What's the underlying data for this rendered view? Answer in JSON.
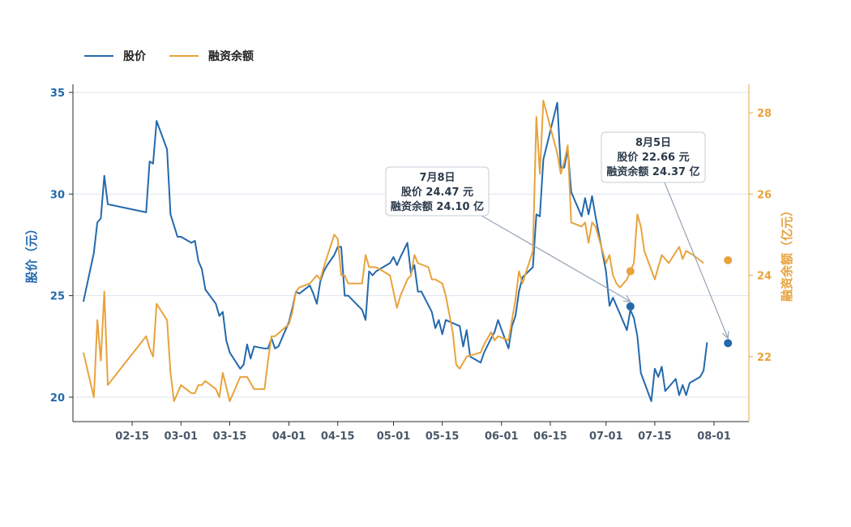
{
  "chart_data": {
    "type": "line",
    "x_ticks": [
      "02-15",
      "03-01",
      "03-15",
      "04-01",
      "04-15",
      "05-01",
      "05-15",
      "06-01",
      "06-15",
      "07-01",
      "07-15",
      "08-01"
    ],
    "x_tick_days": [
      14,
      28,
      42,
      59,
      73,
      89,
      103,
      120,
      134,
      150,
      164,
      181
    ],
    "y_left": {
      "label": "股价（元）",
      "lim": [
        18.8,
        35.4
      ],
      "ticks": [
        20,
        25,
        30,
        35
      ],
      "color": "#2369ad"
    },
    "y_right": {
      "label": "融资余额（亿元）",
      "lim": [
        20.4,
        28.7
      ],
      "ticks": [
        22,
        24,
        26,
        28
      ],
      "color": "#e8a33c"
    },
    "legend": [
      "股价",
      "融资余额"
    ],
    "legend_placement": "top-left",
    "grid": "horizontal",
    "series": [
      {
        "name": "股价",
        "axis": "left",
        "color": "#2369ad",
        "points": [
          [
            0,
            24.7
          ],
          [
            3,
            27.1
          ],
          [
            4,
            28.6
          ],
          [
            5,
            28.8
          ],
          [
            6,
            30.9
          ],
          [
            7,
            29.5
          ],
          [
            18,
            29.1
          ],
          [
            19,
            31.6
          ],
          [
            20,
            31.5
          ],
          [
            21,
            33.6
          ],
          [
            24,
            32.2
          ],
          [
            25,
            29.0
          ],
          [
            27,
            27.9
          ],
          [
            28,
            27.9
          ],
          [
            31,
            27.6
          ],
          [
            32,
            27.7
          ],
          [
            33,
            26.7
          ],
          [
            34,
            26.3
          ],
          [
            35,
            25.3
          ],
          [
            38,
            24.6
          ],
          [
            39,
            24.0
          ],
          [
            40,
            24.2
          ],
          [
            41,
            22.8
          ],
          [
            42,
            22.2
          ],
          [
            45,
            21.4
          ],
          [
            46,
            21.6
          ],
          [
            47,
            22.6
          ],
          [
            48,
            21.9
          ],
          [
            49,
            22.5
          ],
          [
            52,
            22.4
          ],
          [
            53,
            22.4
          ],
          [
            54,
            22.9
          ],
          [
            55,
            22.4
          ],
          [
            56,
            22.5
          ],
          [
            59,
            23.7
          ],
          [
            60,
            24.4
          ],
          [
            61,
            25.2
          ],
          [
            62,
            25.1
          ],
          [
            65,
            25.5
          ],
          [
            66,
            25.1
          ],
          [
            67,
            24.6
          ],
          [
            68,
            25.7
          ],
          [
            69,
            26.2
          ],
          [
            70,
            26.5
          ],
          [
            72,
            27.0
          ],
          [
            73,
            27.4
          ],
          [
            74,
            27.4
          ],
          [
            75,
            25.0
          ],
          [
            76,
            25.0
          ],
          [
            80,
            24.3
          ],
          [
            81,
            23.8
          ],
          [
            82,
            26.2
          ],
          [
            83,
            26.0
          ],
          [
            84,
            26.2
          ],
          [
            88,
            26.6
          ],
          [
            89,
            26.9
          ],
          [
            90,
            26.5
          ],
          [
            91,
            26.9
          ],
          [
            93,
            27.6
          ],
          [
            94,
            26.1
          ],
          [
            95,
            26.5
          ],
          [
            96,
            25.2
          ],
          [
            97,
            25.2
          ],
          [
            100,
            24.2
          ],
          [
            101,
            23.4
          ],
          [
            102,
            23.8
          ],
          [
            103,
            23.1
          ],
          [
            104,
            23.8
          ],
          [
            108,
            23.5
          ],
          [
            109,
            22.5
          ],
          [
            110,
            23.3
          ],
          [
            111,
            22.0
          ],
          [
            114,
            21.7
          ],
          [
            115,
            22.2
          ],
          [
            117,
            22.9
          ],
          [
            118,
            23.2
          ],
          [
            119,
            23.8
          ],
          [
            122,
            22.4
          ],
          [
            123,
            23.5
          ],
          [
            124,
            24.0
          ],
          [
            125,
            25.2
          ],
          [
            126,
            25.9
          ],
          [
            129,
            26.4
          ],
          [
            130,
            29.0
          ],
          [
            131,
            28.9
          ],
          [
            132,
            31.7
          ],
          [
            136,
            34.5
          ],
          [
            137,
            31.3
          ],
          [
            138,
            31.3
          ],
          [
            139,
            32.2
          ],
          [
            140,
            30.1
          ],
          [
            143,
            28.9
          ],
          [
            144,
            29.8
          ],
          [
            145,
            29.0
          ],
          [
            146,
            29.9
          ],
          [
            147,
            28.9
          ],
          [
            150,
            26.2
          ],
          [
            151,
            24.5
          ],
          [
            152,
            24.9
          ],
          [
            156,
            23.3
          ],
          [
            157,
            24.3
          ],
          [
            158,
            23.9
          ],
          [
            159,
            23.0
          ],
          [
            160,
            21.2
          ],
          [
            163,
            19.8
          ],
          [
            164,
            21.4
          ],
          [
            165,
            21.0
          ],
          [
            166,
            21.5
          ],
          [
            167,
            20.3
          ],
          [
            170,
            20.9
          ],
          [
            171,
            20.1
          ],
          [
            172,
            20.6
          ],
          [
            173,
            20.1
          ],
          [
            174,
            20.7
          ],
          [
            177,
            21.0
          ],
          [
            178,
            21.3
          ],
          [
            179,
            22.7
          ]
        ]
      },
      {
        "name": "融资余额",
        "axis": "right",
        "color": "#e8a33c",
        "points": [
          [
            0,
            22.1
          ],
          [
            3,
            21.0
          ],
          [
            4,
            22.9
          ],
          [
            5,
            21.9
          ],
          [
            6,
            23.6
          ],
          [
            7,
            21.3
          ],
          [
            18,
            22.5
          ],
          [
            19,
            22.2
          ],
          [
            20,
            22.0
          ],
          [
            21,
            23.3
          ],
          [
            24,
            22.9
          ],
          [
            25,
            21.6
          ],
          [
            26,
            20.9
          ],
          [
            28,
            21.3
          ],
          [
            31,
            21.1
          ],
          [
            32,
            21.1
          ],
          [
            33,
            21.3
          ],
          [
            34,
            21.3
          ],
          [
            35,
            21.4
          ],
          [
            38,
            21.2
          ],
          [
            39,
            21.0
          ],
          [
            40,
            21.6
          ],
          [
            42,
            20.9
          ],
          [
            45,
            21.5
          ],
          [
            47,
            21.5
          ],
          [
            49,
            21.2
          ],
          [
            52,
            21.2
          ],
          [
            53,
            21.9
          ],
          [
            54,
            22.5
          ],
          [
            55,
            22.5
          ],
          [
            59,
            22.8
          ],
          [
            60,
            23.1
          ],
          [
            61,
            23.6
          ],
          [
            62,
            23.7
          ],
          [
            65,
            23.8
          ],
          [
            66,
            23.9
          ],
          [
            67,
            24.0
          ],
          [
            68,
            23.9
          ],
          [
            69,
            24.2
          ],
          [
            72,
            25.0
          ],
          [
            73,
            24.9
          ],
          [
            74,
            24.0
          ],
          [
            75,
            24.0
          ],
          [
            76,
            23.8
          ],
          [
            80,
            23.8
          ],
          [
            81,
            24.5
          ],
          [
            82,
            24.2
          ],
          [
            84,
            24.2
          ],
          [
            88,
            24.0
          ],
          [
            89,
            23.6
          ],
          [
            90,
            23.2
          ],
          [
            91,
            23.5
          ],
          [
            93,
            23.9
          ],
          [
            94,
            24.0
          ],
          [
            95,
            24.5
          ],
          [
            96,
            24.3
          ],
          [
            99,
            24.2
          ],
          [
            100,
            23.9
          ],
          [
            101,
            23.9
          ],
          [
            103,
            23.8
          ],
          [
            104,
            23.5
          ],
          [
            106,
            22.6
          ],
          [
            107,
            21.8
          ],
          [
            108,
            21.7
          ],
          [
            110,
            22.0
          ],
          [
            114,
            22.1
          ],
          [
            115,
            22.3
          ],
          [
            117,
            22.6
          ],
          [
            118,
            22.4
          ],
          [
            119,
            22.5
          ],
          [
            122,
            22.4
          ],
          [
            123,
            22.9
          ],
          [
            124,
            23.4
          ],
          [
            125,
            24.1
          ],
          [
            126,
            23.8
          ],
          [
            129,
            24.6
          ],
          [
            130,
            27.9
          ],
          [
            131,
            26.5
          ],
          [
            132,
            28.3
          ],
          [
            136,
            27.0
          ],
          [
            137,
            26.5
          ],
          [
            138,
            26.8
          ],
          [
            139,
            27.2
          ],
          [
            140,
            25.3
          ],
          [
            143,
            25.2
          ],
          [
            144,
            25.3
          ],
          [
            145,
            24.8
          ],
          [
            146,
            25.3
          ],
          [
            147,
            25.2
          ],
          [
            150,
            24.3
          ],
          [
            151,
            24.5
          ],
          [
            152,
            24.0
          ],
          [
            153,
            23.8
          ],
          [
            154,
            23.7
          ],
          [
            156,
            23.9
          ],
          [
            157,
            24.1
          ],
          [
            158,
            24.3
          ],
          [
            159,
            25.5
          ],
          [
            160,
            25.2
          ],
          [
            161,
            24.6
          ],
          [
            164,
            23.9
          ],
          [
            165,
            24.2
          ],
          [
            166,
            24.5
          ],
          [
            168,
            24.3
          ],
          [
            171,
            24.7
          ],
          [
            172,
            24.4
          ],
          [
            173,
            24.6
          ],
          [
            175,
            24.5
          ],
          [
            178,
            24.3
          ]
        ]
      }
    ],
    "annotations": [
      {
        "lines": [
          "7月8日",
          "股价 24.47 元",
          "融资余额 24.10 亿"
        ],
        "x_day": 157,
        "price": 24.47,
        "margin": 24.1
      },
      {
        "lines": [
          "8月5日",
          "股价 22.66 元",
          "融资余额 24.37 亿"
        ],
        "x_day": 185,
        "price": 22.66,
        "margin": 24.37
      }
    ]
  }
}
